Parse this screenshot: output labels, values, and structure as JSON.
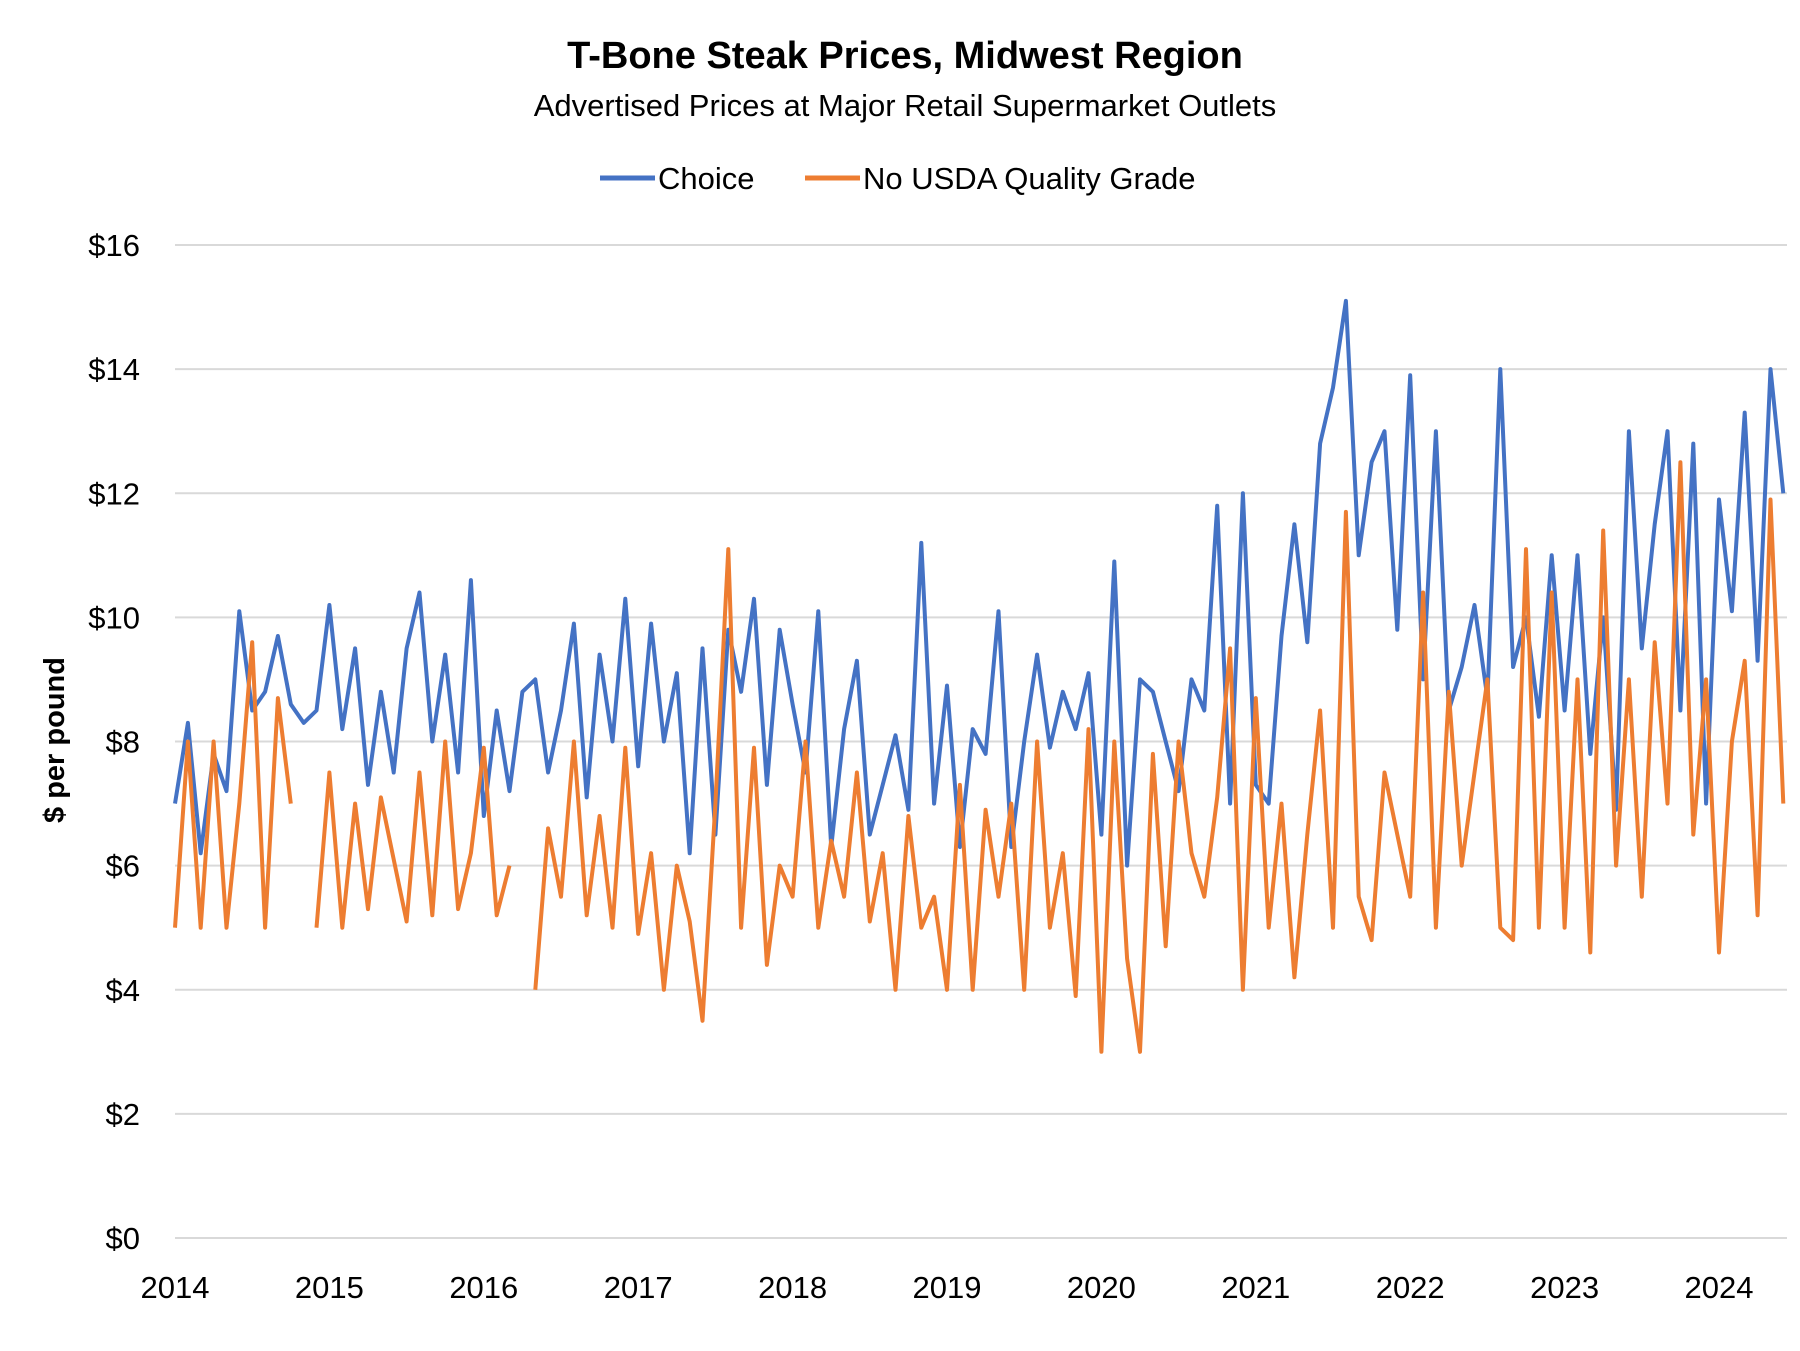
{
  "chart_data": {
    "type": "line",
    "title": "T-Bone Steak Prices, Midwest Region",
    "subtitle": "Advertised Prices at Major Retail Supermarket Outlets",
    "xlabel": "",
    "ylabel": "$ per pound",
    "ylim": [
      0,
      16
    ],
    "xlim": [
      "2014-01",
      "2024-06"
    ],
    "yticks": [
      "$0",
      "$2",
      "$4",
      "$6",
      "$8",
      "$10",
      "$12",
      "$14",
      "$16"
    ],
    "ytick_values": [
      0,
      2,
      4,
      6,
      8,
      10,
      12,
      14,
      16
    ],
    "xticks": [
      "2014",
      "2015",
      "2016",
      "2017",
      "2018",
      "2019",
      "2020",
      "2021",
      "2022",
      "2023",
      "2024"
    ],
    "grid": "horizontal",
    "legend_position": "top",
    "series": [
      {
        "name": "Choice",
        "color": "#4472C4",
        "start": "2014-01",
        "frequency": "monthly (approximate reading of weekly data)",
        "values": [
          7.0,
          8.3,
          6.2,
          7.8,
          7.2,
          10.1,
          8.5,
          8.8,
          9.7,
          8.6,
          8.3,
          8.5,
          10.2,
          8.2,
          9.5,
          7.3,
          8.8,
          7.5,
          9.5,
          10.4,
          8.0,
          9.4,
          7.5,
          10.6,
          6.8,
          8.5,
          7.2,
          8.8,
          9.0,
          7.5,
          8.5,
          9.9,
          7.1,
          9.4,
          8.0,
          10.3,
          7.6,
          9.9,
          8.0,
          9.1,
          6.2,
          9.5,
          6.5,
          9.8,
          8.8,
          10.3,
          7.3,
          9.8,
          8.6,
          7.5,
          10.1,
          6.3,
          8.2,
          9.3,
          6.5,
          7.3,
          8.1,
          6.9,
          11.2,
          7.0,
          8.9,
          6.3,
          8.2,
          7.8,
          10.1,
          6.3,
          8.0,
          9.4,
          7.9,
          8.8,
          8.2,
          9.1,
          6.5,
          10.9,
          6.0,
          9.0,
          8.8,
          8.0,
          7.2,
          9.0,
          8.5,
          11.8,
          7.0,
          12.0,
          7.3,
          7.0,
          9.7,
          11.5,
          9.6,
          12.8,
          13.7,
          15.1,
          11.0,
          12.5,
          13.0,
          9.8,
          13.9,
          9.0,
          13.0,
          8.5,
          9.2,
          10.2,
          8.7,
          14.0,
          9.2,
          10.0,
          8.4,
          11.0,
          8.5,
          11.0,
          7.8,
          10.0,
          6.9,
          13.0,
          9.5,
          11.5,
          13.0,
          8.5,
          12.8,
          7.0,
          11.9,
          10.1,
          13.3,
          9.3,
          14.0,
          12.0
        ]
      },
      {
        "name": "No USDA Quality Grade",
        "color": "#ED7D31",
        "start": "2014-01",
        "frequency": "monthly (approximate reading of weekly data)",
        "values": [
          5.0,
          8.0,
          5.0,
          8.0,
          5.0,
          7.0,
          9.6,
          5.0,
          8.7,
          7.0,
          null,
          5.0,
          7.5,
          5.0,
          7.0,
          5.3,
          7.1,
          6.1,
          5.1,
          7.5,
          5.2,
          8.0,
          5.3,
          6.2,
          7.9,
          5.2,
          6.0,
          null,
          4.0,
          6.6,
          5.5,
          8.0,
          5.2,
          6.8,
          5.0,
          7.9,
          4.9,
          6.2,
          4.0,
          6.0,
          5.1,
          3.5,
          7.0,
          11.1,
          5.0,
          7.9,
          4.4,
          6.0,
          5.5,
          8.0,
          5.0,
          6.4,
          5.5,
          7.5,
          5.1,
          6.2,
          4.0,
          6.8,
          5.0,
          5.5,
          4.0,
          7.3,
          4.0,
          6.9,
          5.5,
          7.0,
          4.0,
          8.0,
          5.0,
          6.2,
          3.9,
          8.2,
          3.0,
          8.0,
          4.5,
          3.0,
          7.8,
          4.7,
          8.0,
          6.2,
          5.5,
          7.1,
          9.5,
          4.0,
          8.7,
          5.0,
          7.0,
          4.2,
          6.5,
          8.5,
          5.0,
          11.7,
          5.5,
          4.8,
          7.5,
          6.5,
          5.5,
          10.4,
          5.0,
          8.8,
          6.0,
          7.5,
          9.0,
          5.0,
          4.8,
          11.1,
          5.0,
          10.4,
          5.0,
          9.0,
          4.6,
          11.4,
          6.0,
          9.0,
          5.5,
          9.6,
          7.0,
          12.5,
          6.5,
          9.0,
          4.6,
          8.0,
          9.3,
          5.2,
          11.9,
          7.0
        ]
      }
    ]
  }
}
